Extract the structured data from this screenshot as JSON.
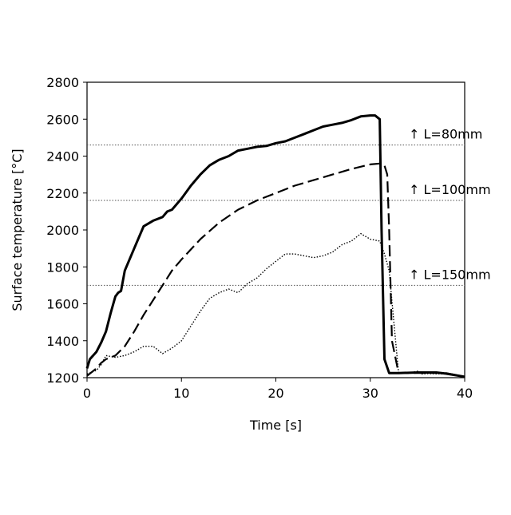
{
  "chart_data": {
    "type": "line",
    "xlabel": "Time [s]",
    "ylabel": "Surface temperature [°C]",
    "xlim": [
      0,
      40
    ],
    "ylim": [
      1200,
      2800
    ],
    "xticks": [
      0,
      10,
      20,
      30,
      40
    ],
    "yticks": [
      1200,
      1400,
      1600,
      1800,
      2000,
      2200,
      2400,
      2600,
      2800
    ],
    "grid": false,
    "series": [
      {
        "style": "solid",
        "x": [
          0,
          0.3,
          1,
          1.5,
          2,
          2.5,
          3,
          3.3,
          3.6,
          4,
          5,
          6,
          7,
          8,
          8.5,
          9,
          10,
          11,
          12,
          13,
          14,
          15,
          16,
          17,
          18,
          19,
          20,
          21,
          22,
          23,
          24,
          25,
          26,
          27,
          28,
          29,
          30,
          30.5,
          31,
          31.2,
          31.5,
          32,
          33,
          35,
          37,
          38,
          40
        ],
        "y": [
          1250,
          1300,
          1340,
          1390,
          1450,
          1550,
          1640,
          1660,
          1670,
          1780,
          1900,
          2020,
          2050,
          2070,
          2100,
          2110,
          2170,
          2240,
          2300,
          2350,
          2380,
          2400,
          2430,
          2440,
          2450,
          2455,
          2470,
          2480,
          2500,
          2520,
          2540,
          2560,
          2570,
          2580,
          2595,
          2615,
          2620,
          2620,
          2600,
          2000,
          1300,
          1225,
          1225,
          1228,
          1228,
          1222,
          1205
        ]
      },
      {
        "style": "dashed",
        "x": [
          0,
          1,
          1.5,
          2,
          3,
          4,
          5,
          6,
          7,
          8,
          9,
          10,
          12,
          14,
          16,
          18,
          20,
          22,
          24,
          26,
          28,
          30,
          31,
          31.5,
          31.8,
          32,
          32.3,
          33,
          34,
          36,
          38,
          40
        ],
        "y": [
          1210,
          1250,
          1280,
          1300,
          1320,
          1370,
          1450,
          1540,
          1620,
          1700,
          1780,
          1840,
          1950,
          2040,
          2110,
          2160,
          2200,
          2240,
          2270,
          2300,
          2330,
          2355,
          2360,
          2350,
          2300,
          2000,
          1400,
          1225,
          1225,
          1225,
          1225,
          1205
        ]
      },
      {
        "style": "dotted",
        "x": [
          0,
          1,
          1.5,
          2,
          3,
          4,
          5,
          6,
          7,
          8,
          9,
          10,
          11,
          12,
          13,
          14,
          15,
          16,
          17,
          18,
          19,
          20,
          21,
          22,
          23,
          24,
          25,
          26,
          27,
          28,
          29,
          30,
          31,
          31.5,
          32,
          32.5,
          33,
          34,
          35,
          35.5,
          36,
          38,
          40
        ],
        "y": [
          1220,
          1240,
          1270,
          1320,
          1310,
          1320,
          1340,
          1370,
          1370,
          1330,
          1360,
          1400,
          1480,
          1560,
          1630,
          1660,
          1680,
          1660,
          1710,
          1740,
          1790,
          1830,
          1870,
          1870,
          1860,
          1850,
          1860,
          1880,
          1920,
          1940,
          1980,
          1950,
          1940,
          1870,
          1780,
          1500,
          1225,
          1225,
          1235,
          1220,
          1222,
          1220,
          1205
        ]
      }
    ],
    "reference_lines": [
      {
        "y": 2460,
        "label": "↑ L=80mm"
      },
      {
        "y": 2160,
        "label": "↑ L=100mm"
      },
      {
        "y": 1700,
        "label": "↑ L=150mm"
      }
    ]
  }
}
